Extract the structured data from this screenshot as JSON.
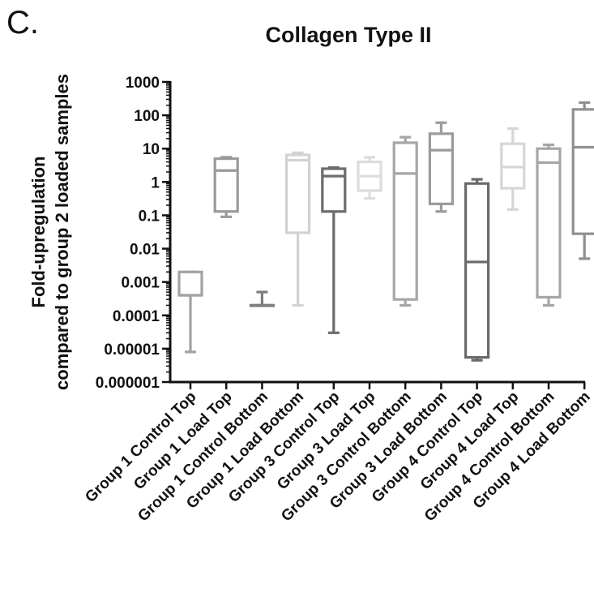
{
  "panel_letter": "C.",
  "chart_data": {
    "type": "box",
    "title": "Collagen Type II",
    "ylabel_lines": [
      "Fold-upregulation",
      "compared to group 2 loaded samples"
    ],
    "xlabel": "",
    "yscale": "log",
    "ylim": [
      1e-06,
      1000
    ],
    "y_ticks": [
      {
        "value": 1000,
        "label": "1000"
      },
      {
        "value": 100,
        "label": "100"
      },
      {
        "value": 10,
        "label": "10"
      },
      {
        "value": 1,
        "label": "1"
      },
      {
        "value": 0.1,
        "label": "0.1"
      },
      {
        "value": 0.01,
        "label": "0.01"
      },
      {
        "value": 0.001,
        "label": "0.001"
      },
      {
        "value": 0.0001,
        "label": "0.0001"
      },
      {
        "value": 1e-05,
        "label": "0.00001"
      },
      {
        "value": 1e-06,
        "label": "0.000001"
      }
    ],
    "grid": false,
    "legend": "none",
    "categories": [
      "Group 1 Control Top",
      "Group 1 Load Top",
      "Group 1 Control Bottom",
      "Group 1 Load Bottom",
      "Group 3 Control Top",
      "Group 3 Load Top",
      "Group 3 Control Bottom",
      "Group 3 Load Bottom",
      "Group 4 Control Top",
      "Group 4 Load Top",
      "Group 4 Control Bottom",
      "Group 4 Load Bottom"
    ],
    "boxes": [
      {
        "min": 8e-06,
        "q1": 0.0004,
        "median": 0.0004,
        "q3": 0.002,
        "max": 0.002,
        "color": "#a2a2a2"
      },
      {
        "min": 0.09,
        "q1": 0.13,
        "median": 2.2,
        "q3": 5,
        "max": 5.5,
        "color": "#9a9a9a"
      },
      {
        "min": 0.0002,
        "q1": 0.0002,
        "median": 0.0002,
        "q3": 0.0002,
        "max": 0.0005,
        "color": "#7c7c7c"
      },
      {
        "min": 0.0002,
        "q1": 0.03,
        "median": 4.5,
        "q3": 6.5,
        "max": 7.5,
        "color": "#d2d2d2"
      },
      {
        "min": 3e-05,
        "q1": 0.13,
        "median": 1.5,
        "q3": 2.5,
        "max": 2.7,
        "color": "#6c6c6c"
      },
      {
        "min": 0.32,
        "q1": 0.55,
        "median": 1.5,
        "q3": 4,
        "max": 5.5,
        "color": "#dcdcdc"
      },
      {
        "min": 0.0002,
        "q1": 0.0003,
        "median": 1.8,
        "q3": 15,
        "max": 22,
        "color": "#a6a6a6"
      },
      {
        "min": 0.13,
        "q1": 0.22,
        "median": 9,
        "q3": 28,
        "max": 60,
        "color": "#9b9b9b"
      },
      {
        "min": 4.5e-06,
        "q1": 5.5e-06,
        "median": 0.004,
        "q3": 0.9,
        "max": 1.2,
        "color": "#6a6a6a"
      },
      {
        "min": 0.15,
        "q1": 0.65,
        "median": 2.8,
        "q3": 14,
        "max": 40,
        "color": "#d6d6d6"
      },
      {
        "min": 0.0002,
        "q1": 0.00035,
        "median": 3.8,
        "q3": 10,
        "max": 13,
        "color": "#a6a6a6"
      },
      {
        "min": 0.005,
        "q1": 0.028,
        "median": 11,
        "q3": 150,
        "max": 240,
        "color": "#909090"
      }
    ]
  }
}
